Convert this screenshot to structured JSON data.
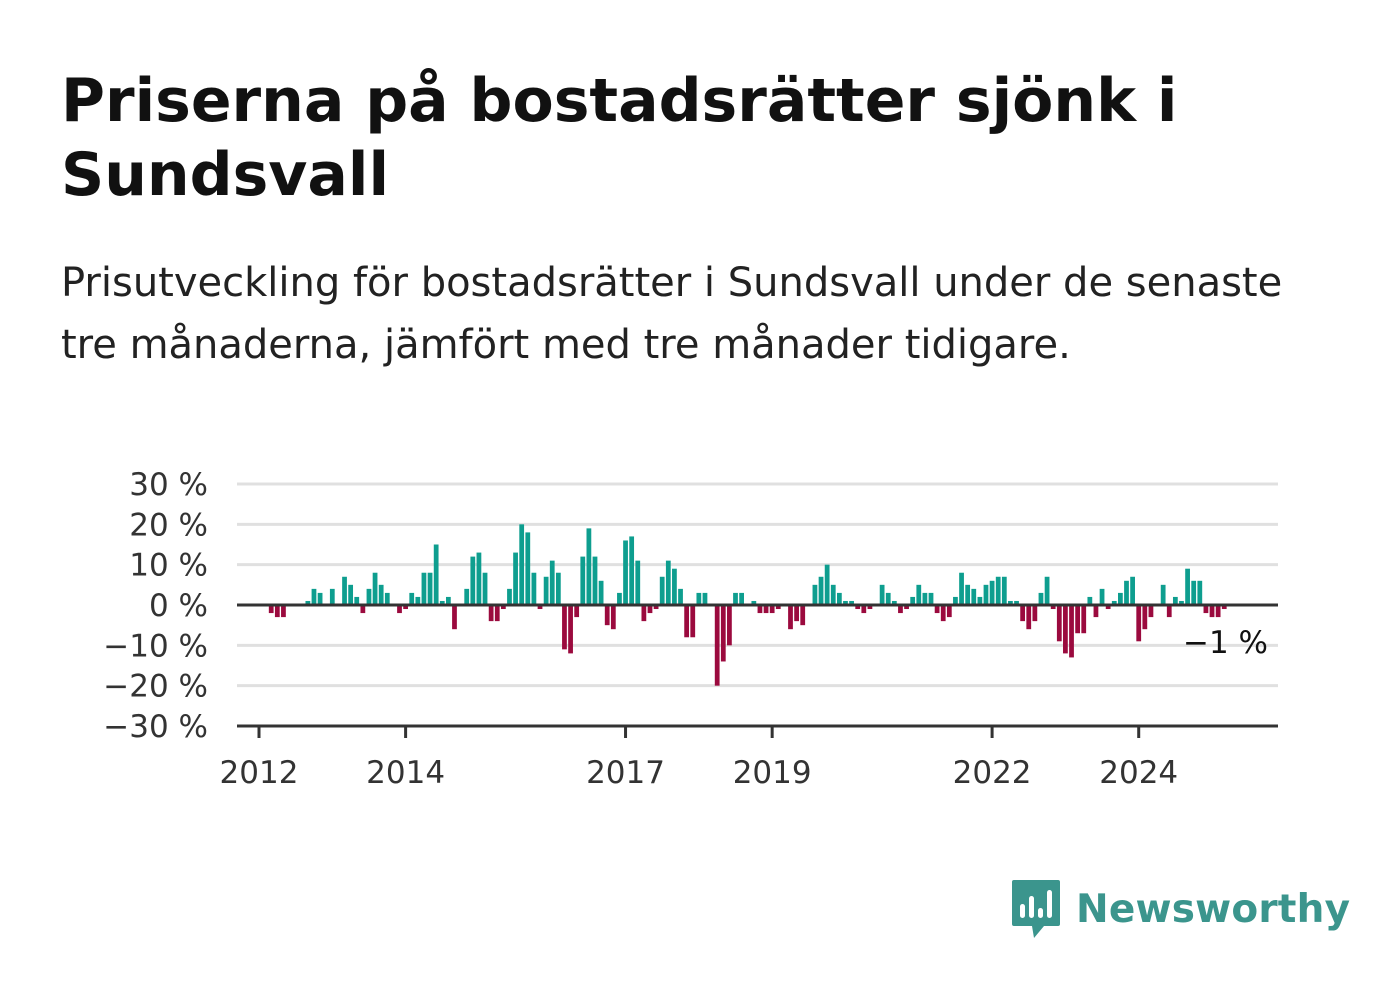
{
  "header": {
    "title": "Priserna på bostadsrätter sjönk i Sundsvall",
    "subtitle": "Prisutveckling för bostadsrätter i Sundsvall under de senaste tre månaderna, jämfört med tre månader tidigare."
  },
  "brand": {
    "name": "Newsworthy",
    "icon": "newsworthy-logo-icon",
    "color": "#3b958d"
  },
  "colors": {
    "positive": "#0e9e8f",
    "negative": "#9b0a3e",
    "grid": "#e0e0e0",
    "axis": "#333333"
  },
  "chart_data": {
    "type": "bar",
    "title": "Priserna på bostadsrätter sjönk i Sundsvall",
    "xlabel": "",
    "ylabel": "",
    "ylim": [
      -30,
      30
    ],
    "yticks": [
      30,
      20,
      10,
      0,
      -10,
      -20,
      -30
    ],
    "ytick_labels": [
      "30 %",
      "20 %",
      "10 %",
      "0 %",
      "−10 %",
      "−20 %",
      "−30 %"
    ],
    "xticks": [
      2012,
      2014,
      2017,
      2019,
      2022,
      2024
    ],
    "xlim": [
      2011.7,
      2025.9
    ],
    "grid": true,
    "legend": "none",
    "end_label": "−1 %",
    "start": "2012-01",
    "values": [
      0,
      0,
      -2,
      -3,
      -3,
      0,
      0,
      0,
      1,
      4,
      3,
      0,
      4,
      0,
      7,
      5,
      2,
      -2,
      4,
      8,
      5,
      3,
      0,
      -2,
      -1,
      3,
      2,
      8,
      8,
      15,
      1,
      2,
      -6,
      0,
      4,
      12,
      13,
      8,
      -4,
      -4,
      -1,
      4,
      13,
      20,
      18,
      8,
      -1,
      7,
      11,
      8,
      -11,
      -12,
      -3,
      12,
      19,
      12,
      6,
      -5,
      -6,
      3,
      16,
      17,
      11,
      -4,
      -2,
      -1,
      7,
      11,
      9,
      4,
      -8,
      -8,
      3,
      3,
      0,
      -20,
      -14,
      -10,
      3,
      3,
      0,
      1,
      -2,
      -2,
      -2,
      -1,
      0,
      -6,
      -4,
      -5,
      0,
      5,
      7,
      10,
      5,
      3,
      1,
      1,
      -1,
      -2,
      -1,
      0,
      5,
      3,
      1,
      -2,
      -1,
      2,
      5,
      3,
      3,
      -2,
      -4,
      -3,
      2,
      8,
      5,
      4,
      2,
      5,
      6,
      7,
      7,
      1,
      1,
      -4,
      -6,
      -4,
      3,
      7,
      -1,
      -9,
      -12,
      -13,
      -7,
      -7,
      2,
      -3,
      4,
      -1,
      1,
      3,
      6,
      7,
      -9,
      -6,
      -3,
      0,
      5,
      -3,
      2,
      1,
      9,
      6,
      6,
      -2,
      -3,
      -3,
      -1
    ]
  }
}
